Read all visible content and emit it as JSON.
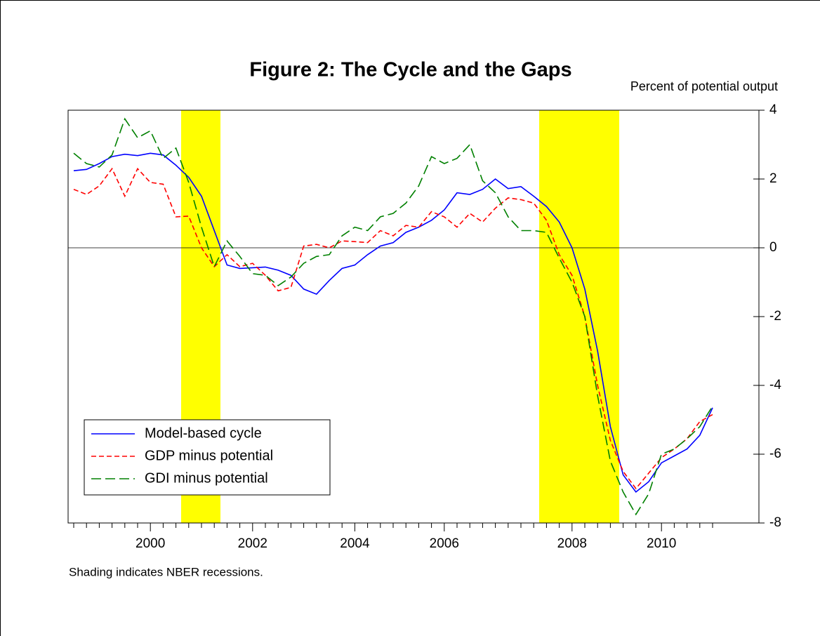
{
  "chart_data": {
    "type": "line",
    "title": "Figure 2:  The Cycle and the Gaps",
    "y_axis_label": "Percent of potential output",
    "note": "Shading indicates NBER recessions.",
    "categories": [
      null,
      null,
      null,
      null,
      null,
      null,
      "2000",
      null,
      null,
      null,
      null,
      null,
      null,
      null,
      "2002",
      null,
      null,
      null,
      null,
      null,
      null,
      null,
      "2004",
      null,
      null,
      null,
      null,
      null,
      null,
      "2006",
      null,
      null,
      null,
      null,
      null,
      null,
      null,
      null,
      null,
      "2008",
      null,
      null,
      null,
      null,
      null,
      null,
      "2010",
      null,
      null,
      null,
      null
    ],
    "series": [
      {
        "name": "Model-based cycle",
        "color": "#0000ff",
        "dash": "solid",
        "values": [
          2.24,
          2.28,
          2.45,
          2.65,
          2.72,
          2.68,
          2.75,
          2.7,
          2.4,
          2.05,
          1.5,
          0.5,
          -0.5,
          -0.6,
          -0.58,
          -0.56,
          -0.65,
          -0.8,
          -1.2,
          -1.35,
          -0.95,
          -0.6,
          -0.5,
          -0.2,
          0.05,
          0.15,
          0.45,
          0.6,
          0.8,
          1.1,
          1.6,
          1.55,
          1.7,
          2.0,
          1.72,
          1.78,
          1.5,
          1.2,
          0.75,
          0.0,
          -1.2,
          -3.0,
          -5.2,
          -6.6,
          -7.1,
          -6.8,
          -6.25,
          -6.05,
          -5.85,
          -5.45,
          -4.65
        ]
      },
      {
        "name": "GDP minus potential",
        "color": "#ff0000",
        "dash": "short",
        "values": [
          1.7,
          1.55,
          1.8,
          2.3,
          1.5,
          2.3,
          1.9,
          1.85,
          0.9,
          0.92,
          0.0,
          -0.55,
          -0.2,
          -0.55,
          -0.45,
          -0.8,
          -1.25,
          -1.15,
          0.05,
          0.1,
          0.0,
          0.2,
          0.18,
          0.15,
          0.5,
          0.35,
          0.65,
          0.6,
          1.05,
          0.9,
          0.6,
          1.0,
          0.75,
          1.15,
          1.45,
          1.4,
          1.3,
          0.8,
          -0.2,
          -0.8,
          -2.0,
          -4.0,
          -5.6,
          -6.5,
          -7.0,
          -6.55,
          -6.1,
          -5.85,
          -5.55,
          -5.05,
          -4.85
        ]
      },
      {
        "name": "GDI minus potential",
        "color": "#008000",
        "dash": "long",
        "values": [
          2.75,
          2.45,
          2.35,
          2.7,
          3.75,
          3.2,
          3.4,
          2.6,
          2.9,
          1.9,
          0.6,
          -0.55,
          0.2,
          -0.25,
          -0.75,
          -0.8,
          -1.1,
          -0.85,
          -0.45,
          -0.25,
          -0.2,
          0.35,
          0.6,
          0.5,
          0.9,
          1.0,
          1.3,
          1.8,
          2.65,
          2.45,
          2.6,
          3.0,
          1.95,
          1.6,
          0.9,
          0.5,
          0.5,
          0.45,
          -0.3,
          -1.0,
          -2.0,
          -4.3,
          -6.2,
          -7.1,
          -7.75,
          -7.15,
          -6.0,
          -5.85,
          -5.55,
          -5.2,
          -4.6
        ]
      }
    ],
    "ylim": [
      -8,
      4
    ],
    "yticks": [
      -8,
      -6,
      -4,
      -2,
      0,
      2,
      4
    ],
    "y_axis_side": "right",
    "zero_line": true,
    "legend": "lower-left"
  }
}
